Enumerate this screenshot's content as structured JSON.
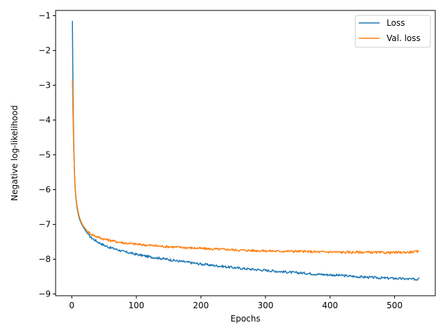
{
  "chart_data": {
    "type": "line",
    "title": "",
    "xlabel": "Epochs",
    "ylabel": "Negative log-likelihood",
    "xlim": [
      -25,
      563
    ],
    "ylim": [
      -9.05,
      -0.85
    ],
    "xticks": [
      0,
      100,
      200,
      300,
      400,
      500
    ],
    "xtick_labels": [
      "0",
      "100",
      "200",
      "300",
      "400",
      "500"
    ],
    "yticks": [
      -1,
      -2,
      -3,
      -4,
      -5,
      -6,
      -7,
      -8,
      -9
    ],
    "ytick_labels": [
      "−1",
      "−2",
      "−3",
      "−4",
      "−5",
      "−6",
      "−7",
      "−8",
      "−9"
    ],
    "grid": false,
    "legend_position": "top-right",
    "series": [
      {
        "name": "Loss",
        "color": "#1f77b4",
        "points": [
          [
            1,
            -1.15
          ],
          [
            2,
            -3.4
          ],
          [
            3,
            -4.6
          ],
          [
            4,
            -5.4
          ],
          [
            5,
            -5.9
          ],
          [
            6,
            -6.15
          ],
          [
            7,
            -6.35
          ],
          [
            8,
            -6.5
          ],
          [
            10,
            -6.7
          ],
          [
            12,
            -6.85
          ],
          [
            15,
            -6.98
          ],
          [
            18,
            -7.08
          ],
          [
            22,
            -7.2
          ],
          [
            26,
            -7.3
          ],
          [
            30,
            -7.38
          ],
          [
            40,
            -7.5
          ],
          [
            50,
            -7.6
          ],
          [
            60,
            -7.67
          ],
          [
            70,
            -7.72
          ],
          [
            80,
            -7.78
          ],
          [
            100,
            -7.86
          ],
          [
            120,
            -7.93
          ],
          [
            140,
            -7.98
          ],
          [
            160,
            -8.04
          ],
          [
            180,
            -8.09
          ],
          [
            200,
            -8.14
          ],
          [
            220,
            -8.18
          ],
          [
            240,
            -8.22
          ],
          [
            260,
            -8.26
          ],
          [
            280,
            -8.29
          ],
          [
            300,
            -8.32
          ],
          [
            320,
            -8.35
          ],
          [
            340,
            -8.38
          ],
          [
            360,
            -8.4
          ],
          [
            380,
            -8.43
          ],
          [
            400,
            -8.45
          ],
          [
            420,
            -8.47
          ],
          [
            440,
            -8.5
          ],
          [
            460,
            -8.52
          ],
          [
            480,
            -8.54
          ],
          [
            500,
            -8.55
          ],
          [
            520,
            -8.57
          ],
          [
            535,
            -8.58
          ],
          [
            538,
            -8.52
          ]
        ]
      },
      {
        "name": "Val. loss",
        "color": "#ff7f0e",
        "points": [
          [
            1,
            -2.85
          ],
          [
            2,
            -3.9
          ],
          [
            3,
            -4.8
          ],
          [
            4,
            -5.4
          ],
          [
            5,
            -5.85
          ],
          [
            6,
            -6.1
          ],
          [
            7,
            -6.3
          ],
          [
            8,
            -6.45
          ],
          [
            10,
            -6.65
          ],
          [
            12,
            -6.8
          ],
          [
            15,
            -6.95
          ],
          [
            18,
            -7.05
          ],
          [
            22,
            -7.15
          ],
          [
            26,
            -7.22
          ],
          [
            30,
            -7.28
          ],
          [
            40,
            -7.36
          ],
          [
            50,
            -7.42
          ],
          [
            60,
            -7.46
          ],
          [
            70,
            -7.5
          ],
          [
            80,
            -7.53
          ],
          [
            100,
            -7.57
          ],
          [
            120,
            -7.6
          ],
          [
            140,
            -7.63
          ],
          [
            160,
            -7.65
          ],
          [
            180,
            -7.67
          ],
          [
            200,
            -7.69
          ],
          [
            220,
            -7.71
          ],
          [
            240,
            -7.72
          ],
          [
            260,
            -7.74
          ],
          [
            280,
            -7.75
          ],
          [
            300,
            -7.76
          ],
          [
            320,
            -7.77
          ],
          [
            340,
            -7.77
          ],
          [
            360,
            -7.78
          ],
          [
            380,
            -7.79
          ],
          [
            400,
            -7.79
          ],
          [
            420,
            -7.8
          ],
          [
            440,
            -7.8
          ],
          [
            460,
            -7.8
          ],
          [
            480,
            -7.81
          ],
          [
            500,
            -7.81
          ],
          [
            520,
            -7.8
          ],
          [
            538,
            -7.78
          ]
        ]
      }
    ]
  }
}
